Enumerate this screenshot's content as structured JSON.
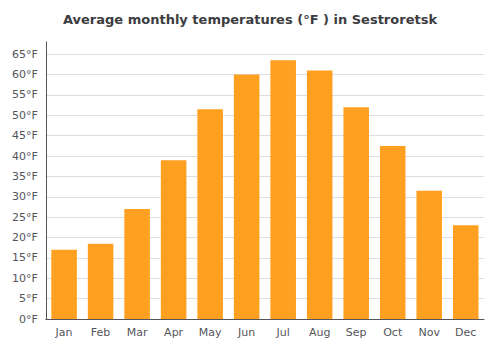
{
  "chart_data": {
    "type": "bar",
    "title": "Average monthly temperatures (°F ) in Sestroretsk",
    "categories": [
      "Jan",
      "Feb",
      "Mar",
      "Apr",
      "May",
      "Jun",
      "Jul",
      "Aug",
      "Sep",
      "Oct",
      "Nov",
      "Dec"
    ],
    "values": [
      17,
      18.5,
      27,
      39,
      51.5,
      60,
      63.5,
      61,
      52,
      42.5,
      31.5,
      23
    ],
    "color": "#FFA020",
    "ylim": [
      0,
      68
    ],
    "yticks": [
      {
        "value": 0,
        "label": "0°F"
      },
      {
        "value": 5,
        "label": "5°F"
      },
      {
        "value": 10,
        "label": "10°F"
      },
      {
        "value": 15,
        "label": "15°F"
      },
      {
        "value": 20,
        "label": "20°F"
      },
      {
        "value": 25,
        "label": "25°F"
      },
      {
        "value": 30,
        "label": "30°F"
      },
      {
        "value": 35,
        "label": "35°F"
      },
      {
        "value": 40,
        "label": "40°F"
      },
      {
        "value": 45,
        "label": "45°F"
      },
      {
        "value": 50,
        "label": "50°F"
      },
      {
        "value": 55,
        "label": "55°F"
      },
      {
        "value": 60,
        "label": "60°F"
      },
      {
        "value": 65,
        "label": "65°F"
      }
    ],
    "grid": true
  }
}
